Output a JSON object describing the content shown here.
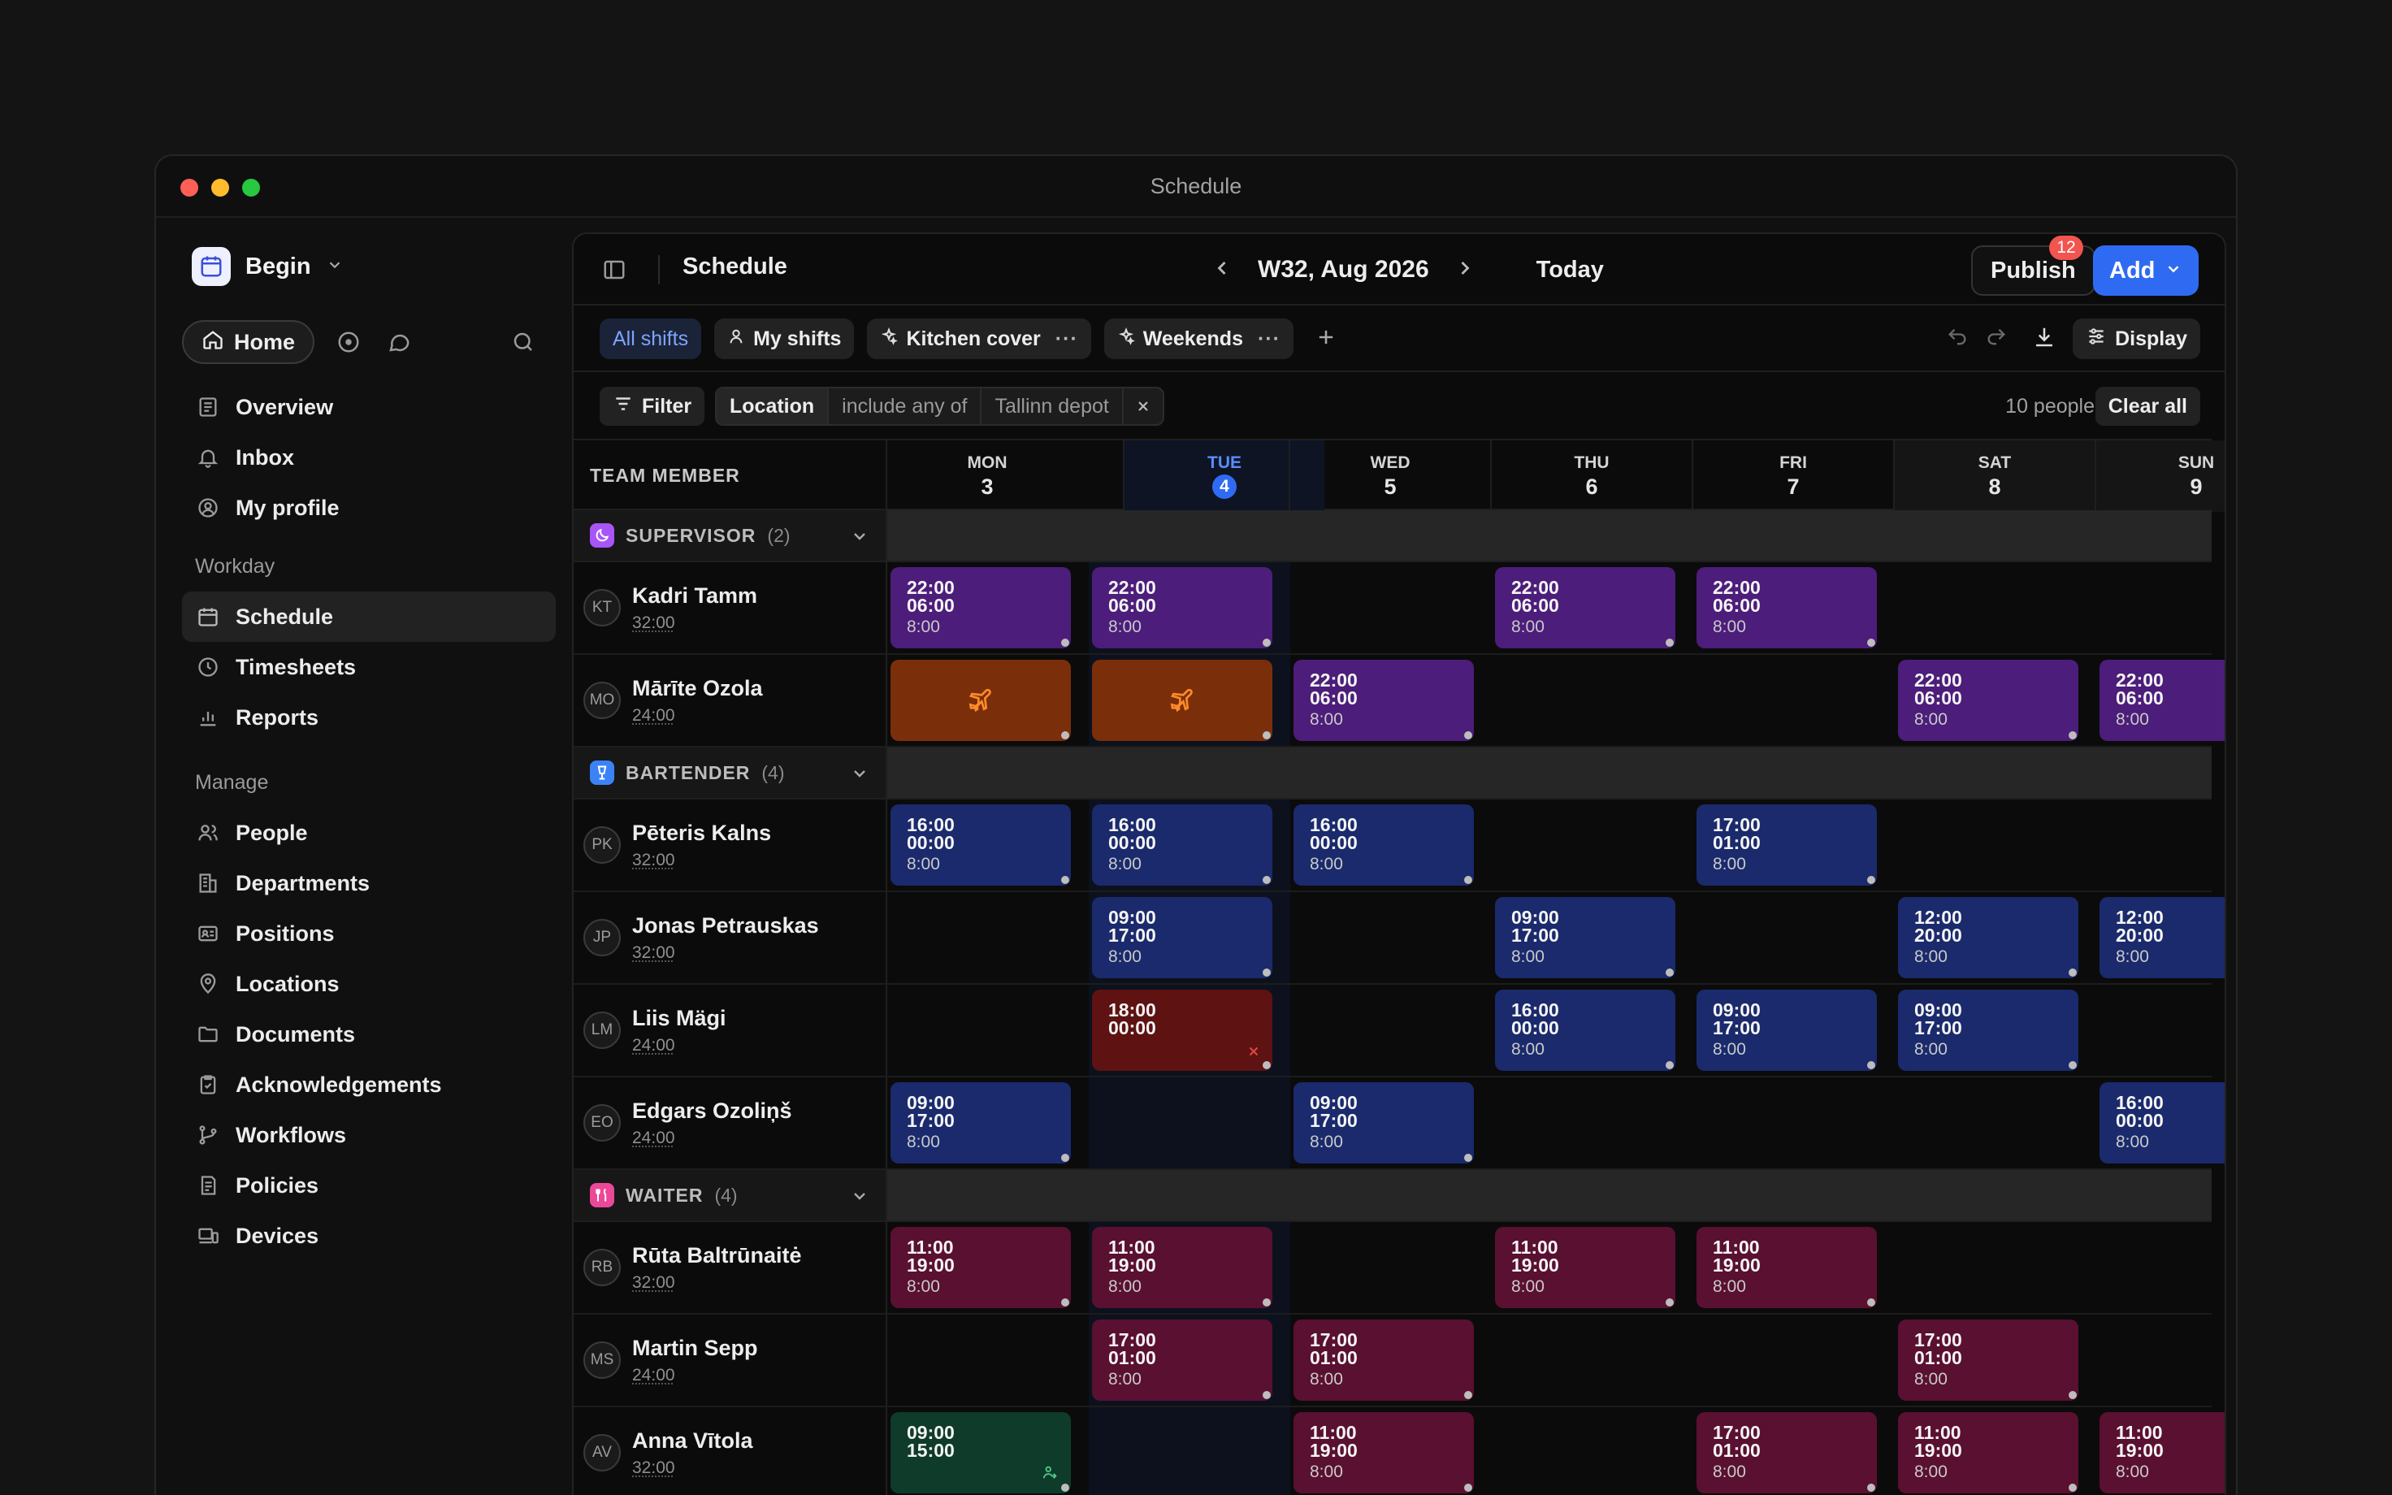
{
  "window": {
    "title": "Schedule"
  },
  "sidebar": {
    "workspace": "Begin",
    "home": "Home",
    "top_items": [
      {
        "label": "Overview",
        "icon": "overview-icon"
      },
      {
        "label": "Inbox",
        "icon": "bell-icon"
      },
      {
        "label": "My profile",
        "icon": "profile-icon"
      }
    ],
    "workday_heading": "Workday",
    "workday_items": [
      {
        "label": "Schedule",
        "icon": "calendar-icon",
        "active": true
      },
      {
        "label": "Timesheets",
        "icon": "clock-icon"
      },
      {
        "label": "Reports",
        "icon": "bar-chart-icon"
      }
    ],
    "manage_heading": "Manage",
    "manage_items": [
      {
        "label": "People",
        "icon": "people-icon"
      },
      {
        "label": "Departments",
        "icon": "building-icon"
      },
      {
        "label": "Positions",
        "icon": "id-card-icon"
      },
      {
        "label": "Locations",
        "icon": "pin-icon"
      },
      {
        "label": "Documents",
        "icon": "folder-icon"
      },
      {
        "label": "Acknowledgements",
        "icon": "clipboard-check-icon"
      },
      {
        "label": "Workflows",
        "icon": "branch-icon"
      },
      {
        "label": "Policies",
        "icon": "policy-icon"
      },
      {
        "label": "Devices",
        "icon": "devices-icon"
      }
    ]
  },
  "header": {
    "title": "Schedule",
    "week": "W32, Aug 2026",
    "today": "Today",
    "publish": "Publish",
    "publish_badge": "12",
    "add": "Add"
  },
  "views": {
    "tabs": [
      {
        "label": "All shifts",
        "active": true
      },
      {
        "label": "My shifts"
      },
      {
        "label": "Kitchen cover",
        "more": "···"
      },
      {
        "label": "Weekends",
        "more": "···"
      }
    ],
    "display": "Display"
  },
  "filters": {
    "filter": "Filter",
    "chip_field": "Location",
    "chip_op": "include any of",
    "chip_value": "Tallinn depot",
    "people_count": "10 people",
    "clear_all": "Clear all"
  },
  "grid": {
    "member_heading": "TEAM MEMBER",
    "days": [
      {
        "name": "MON",
        "num": "3"
      },
      {
        "name": "TUE",
        "num": "4",
        "today": true
      },
      {
        "name": "WED",
        "num": "5"
      },
      {
        "name": "THU",
        "num": "6"
      },
      {
        "name": "FRI",
        "num": "7"
      },
      {
        "name": "SAT",
        "num": "8",
        "weekend": true
      },
      {
        "name": "SUN",
        "num": "9",
        "weekend": true
      }
    ],
    "groups": [
      {
        "name": "SUPERVISOR",
        "count": "(2)",
        "color": "#a855f7",
        "icon": "moon-icon",
        "people": [
          {
            "initials": "KT",
            "name": "Kadri Tamm",
            "hours": "32:00",
            "shifts": [
              {
                "day": 0,
                "start": "22:00",
                "end": "06:00",
                "dur": "8:00",
                "color": "#4c1d7a"
              },
              {
                "day": 1,
                "start": "22:00",
                "end": "06:00",
                "dur": "8:00",
                "color": "#4c1d7a"
              },
              {
                "day": 3,
                "start": "22:00",
                "end": "06:00",
                "dur": "8:00",
                "color": "#4c1d7a"
              },
              {
                "day": 4,
                "start": "22:00",
                "end": "06:00",
                "dur": "8:00",
                "color": "#4c1d7a"
              }
            ]
          },
          {
            "initials": "MO",
            "name": "Mārīte Ozola",
            "hours": "24:00",
            "shifts": [
              {
                "day": 0,
                "type": "leave",
                "icon": "plane-icon",
                "color": "#7a2f0a"
              },
              {
                "day": 1,
                "type": "leave",
                "icon": "plane-icon",
                "color": "#7a2f0a"
              },
              {
                "day": 2,
                "start": "22:00",
                "end": "06:00",
                "dur": "8:00",
                "color": "#4c1d7a"
              },
              {
                "day": 5,
                "start": "22:00",
                "end": "06:00",
                "dur": "8:00",
                "color": "#4c1d7a"
              },
              {
                "day": 6,
                "start": "22:00",
                "end": "06:00",
                "dur": "8:00",
                "color": "#4c1d7a"
              }
            ]
          }
        ]
      },
      {
        "name": "BARTENDER",
        "count": "(4)",
        "color": "#3b82f6",
        "icon": "glass-icon",
        "people": [
          {
            "initials": "PK",
            "name": "Pēteris Kalns",
            "hours": "32:00",
            "shifts": [
              {
                "day": 0,
                "start": "16:00",
                "end": "00:00",
                "dur": "8:00",
                "color": "#1a2a6c"
              },
              {
                "day": 1,
                "start": "16:00",
                "end": "00:00",
                "dur": "8:00",
                "color": "#1a2a6c"
              },
              {
                "day": 2,
                "start": "16:00",
                "end": "00:00",
                "dur": "8:00",
                "color": "#1a2a6c"
              },
              {
                "day": 4,
                "start": "17:00",
                "end": "01:00",
                "dur": "8:00",
                "color": "#1a2a6c"
              }
            ]
          },
          {
            "initials": "JP",
            "name": "Jonas Petrauskas",
            "hours": "32:00",
            "shifts": [
              {
                "day": 1,
                "start": "09:00",
                "end": "17:00",
                "dur": "8:00",
                "color": "#1a2a6c"
              },
              {
                "day": 3,
                "start": "09:00",
                "end": "17:00",
                "dur": "8:00",
                "color": "#1a2a6c"
              },
              {
                "day": 5,
                "start": "12:00",
                "end": "20:00",
                "dur": "8:00",
                "color": "#1a2a6c"
              },
              {
                "day": 6,
                "start": "12:00",
                "end": "20:00",
                "dur": "8:00",
                "color": "#1a2a6c"
              }
            ]
          },
          {
            "initials": "LM",
            "name": "Liis Mägi",
            "hours": "24:00",
            "shifts": [
              {
                "day": 1,
                "start": "18:00",
                "end": "00:00",
                "dur": "",
                "color": "#5e1212",
                "corner": "x-icon"
              },
              {
                "day": 3,
                "start": "16:00",
                "end": "00:00",
                "dur": "8:00",
                "color": "#1a2a6c"
              },
              {
                "day": 4,
                "start": "09:00",
                "end": "17:00",
                "dur": "8:00",
                "color": "#1a2a6c"
              },
              {
                "day": 5,
                "start": "09:00",
                "end": "17:00",
                "dur": "8:00",
                "color": "#1a2a6c"
              }
            ]
          },
          {
            "initials": "EO",
            "name": "Edgars Ozoliņš",
            "hours": "24:00",
            "shifts": [
              {
                "day": 0,
                "start": "09:00",
                "end": "17:00",
                "dur": "8:00",
                "color": "#1a2a6c"
              },
              {
                "day": 2,
                "start": "09:00",
                "end": "17:00",
                "dur": "8:00",
                "color": "#1a2a6c"
              },
              {
                "day": 6,
                "start": "16:00",
                "end": "00:00",
                "dur": "8:00",
                "color": "#1a2a6c"
              }
            ]
          }
        ]
      },
      {
        "name": "WAITER",
        "count": "(4)",
        "color": "#ec4899",
        "icon": "cutlery-icon",
        "people": [
          {
            "initials": "RB",
            "name": "Rūta Baltrūnaitė",
            "hours": "32:00",
            "shifts": [
              {
                "day": 0,
                "start": "11:00",
                "end": "19:00",
                "dur": "8:00",
                "color": "#5a1030"
              },
              {
                "day": 1,
                "start": "11:00",
                "end": "19:00",
                "dur": "8:00",
                "color": "#5a1030"
              },
              {
                "day": 3,
                "start": "11:00",
                "end": "19:00",
                "dur": "8:00",
                "color": "#5a1030"
              },
              {
                "day": 4,
                "start": "11:00",
                "end": "19:00",
                "dur": "8:00",
                "color": "#5a1030"
              }
            ]
          },
          {
            "initials": "MS",
            "name": "Martin Sepp",
            "hours": "24:00",
            "shifts": [
              {
                "day": 1,
                "start": "17:00",
                "end": "01:00",
                "dur": "8:00",
                "color": "#5a1030"
              },
              {
                "day": 2,
                "start": "17:00",
                "end": "01:00",
                "dur": "8:00",
                "color": "#5a1030"
              },
              {
                "day": 5,
                "start": "17:00",
                "end": "01:00",
                "dur": "8:00",
                "color": "#5a1030"
              }
            ]
          },
          {
            "initials": "AV",
            "name": "Anna Vītola",
            "hours": "32:00",
            "shifts": [
              {
                "day": 0,
                "start": "09:00",
                "end": "15:00",
                "dur": "",
                "color": "#0f3b2a",
                "corner": "person-swap-icon"
              },
              {
                "day": 2,
                "start": "11:00",
                "end": "19:00",
                "dur": "8:00",
                "color": "#5a1030"
              },
              {
                "day": 4,
                "start": "17:00",
                "end": "01:00",
                "dur": "8:00",
                "color": "#5a1030"
              },
              {
                "day": 5,
                "start": "11:00",
                "end": "19:00",
                "dur": "8:00",
                "color": "#5a1030"
              },
              {
                "day": 6,
                "start": "11:00",
                "end": "19:00",
                "dur": "8:00",
                "color": "#5a1030"
              }
            ]
          }
        ]
      }
    ]
  }
}
